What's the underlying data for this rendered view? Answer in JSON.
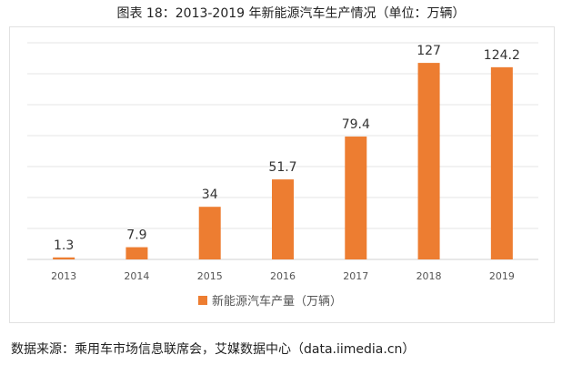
{
  "title": "图表 18：2013-2019 年新能源汽车生产情况（单位：万辆）",
  "source": "数据来源：乘用车市场信息联席会，艾媒数据中心（data.iimedia.cn）",
  "chart_data": {
    "type": "bar",
    "title": "图表 18：2013-2019 年新能源汽车生产情况（单位：万辆）",
    "categories": [
      "2013",
      "2014",
      "2015",
      "2016",
      "2017",
      "2018",
      "2019"
    ],
    "series": [
      {
        "name": "新能源汽车产量（万辆）",
        "values": [
          1.3,
          7.9,
          34,
          51.7,
          79.4,
          127,
          124.2
        ],
        "color": "#ed7d31"
      }
    ],
    "data_labels": [
      "1.3",
      "7.9",
      "34",
      "51.7",
      "79.4",
      "127",
      "124.2"
    ],
    "ylim": [
      0,
      140
    ],
    "ytick_step": 20,
    "y_axis_labels_visible": false,
    "grid": true,
    "legend": "bottom"
  }
}
